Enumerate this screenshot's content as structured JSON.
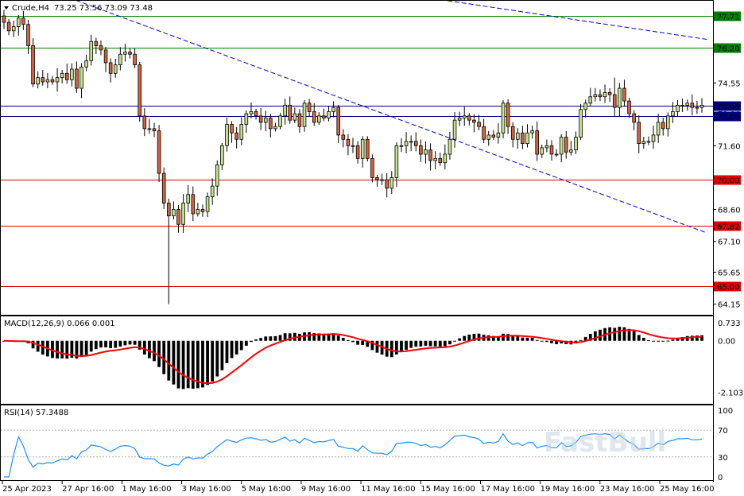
{
  "chart_data": [
    {
      "type": "candlestick",
      "title": "Crude,H4",
      "ohlc_text": "73.25 73.56 73.09 73.48",
      "price_ticks": [
        "74.55",
        "73.10",
        "71.60",
        "68.60",
        "67.10",
        "65.65",
        "64.15"
      ],
      "x_tick_labels": [
        "25 Apr 2023",
        "27 Apr 16:00",
        "1 May 16:00",
        "3 May 16:00",
        "5 May 16:00",
        "9 May 16:00",
        "11 May 16:00",
        "15 May 16:00",
        "17 May 16:00",
        "19 May 16:00",
        "23 May 16:00",
        "25 May 16:00"
      ],
      "ylim": [
        63.8,
        78.3
      ],
      "levels": [
        {
          "value": 77.71,
          "label": "77.71",
          "color": "#008000"
        },
        {
          "value": 76.2,
          "label": "76.20",
          "color": "#008000"
        },
        {
          "value": 73.48,
          "label": "73.48",
          "color": "#000080"
        },
        {
          "value": 73.0,
          "label": "73.00",
          "color": "#000080"
        },
        {
          "value": 70.0,
          "label": "70.00",
          "color": "#e00000"
        },
        {
          "value": 67.82,
          "label": "67.82",
          "color": "#e00000"
        },
        {
          "value": 65.0,
          "label": "65.00",
          "color": "#e00000"
        }
      ],
      "trendlines": [
        {
          "from": [
            1,
            81.5
          ],
          "to": [
            145,
            76.6
          ],
          "color": "#0000c8"
        },
        {
          "from": [
            1,
            79.6
          ],
          "to": [
            145,
            67.5
          ],
          "color": "#0000c8"
        }
      ],
      "close": [
        77.4,
        77.0,
        77.2,
        77.6,
        77.3,
        76.3,
        74.5,
        74.8,
        74.6,
        74.7,
        74.6,
        74.8,
        75.0,
        74.7,
        75.2,
        74.3,
        75.3,
        75.6,
        76.5,
        76.3,
        76.1,
        75.5,
        75.0,
        75.4,
        75.9,
        76.0,
        75.9,
        75.4,
        73.0,
        72.4,
        72.4,
        72.3,
        70.3,
        68.9,
        68.3,
        68.6,
        67.9,
        68.9,
        69.3,
        68.4,
        68.6,
        68.5,
        69.2,
        69.7,
        70.7,
        71.6,
        72.6,
        72.2,
        71.9,
        72.6,
        73.1,
        73.2,
        73.0,
        72.7,
        72.9,
        72.4,
        72.5,
        73.0,
        73.5,
        72.8,
        73.1,
        72.5,
        73.6,
        73.2,
        72.7,
        73.0,
        72.9,
        73.2,
        73.4,
        72.1,
        71.9,
        71.6,
        71.6,
        71.0,
        71.9,
        71.0,
        70.1,
        70.0,
        70.0,
        69.6,
        70.1,
        71.6,
        71.6,
        71.8,
        71.8,
        71.6,
        71.2,
        71.4,
        70.9,
        71.0,
        70.8,
        71.2,
        71.9,
        72.8,
        72.9,
        73.0,
        72.8,
        72.7,
        72.5,
        71.9,
        72.1,
        72.0,
        72.2,
        73.6,
        72.5,
        71.9,
        72.2,
        71.7,
        72.2,
        72.3,
        71.2,
        71.5,
        71.6,
        71.2,
        71.2,
        72.0,
        71.3,
        71.4,
        72.0,
        73.3,
        73.6,
        73.9,
        74.0,
        73.9,
        74.1,
        74.0,
        73.4,
        74.3,
        73.7,
        73.1,
        72.7,
        71.7,
        71.8,
        71.8,
        72.1,
        72.7,
        72.4,
        73.0,
        73.2,
        73.5,
        73.5,
        73.6,
        73.4,
        73.4,
        73.5
      ]
    },
    {
      "type": "histogram+line",
      "title": "MACD(12,26,9) 0.066 0.001",
      "y_ticks": [
        "0.733",
        "0.00",
        "-2.103"
      ],
      "ylim": [
        -2.5,
        0.93
      ],
      "signal_color": "#ff0000",
      "histogram_color": "#000000"
    },
    {
      "type": "line",
      "title": "RSI(14) 57.3488",
      "y_ticks": [
        "100",
        "70",
        "30",
        "0"
      ],
      "ylim": [
        0,
        100
      ],
      "levels": [
        70,
        30
      ],
      "color": "#1e90ff"
    }
  ],
  "watermark": "FastBull"
}
